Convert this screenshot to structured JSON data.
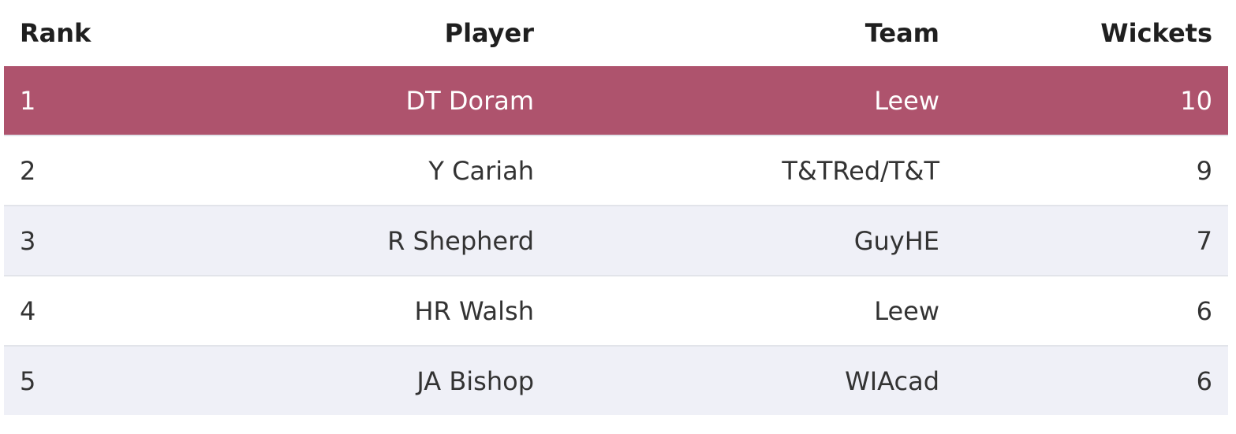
{
  "table": {
    "headers": {
      "rank": "Rank",
      "player": "Player",
      "team": "Team",
      "wickets": "Wickets"
    },
    "rows": [
      {
        "rank": "1",
        "player": "DT Doram",
        "team": "Leew",
        "wickets": "10"
      },
      {
        "rank": "2",
        "player": "Y Cariah",
        "team": "T&TRed/T&T",
        "wickets": "9"
      },
      {
        "rank": "3",
        "player": "R Shepherd",
        "team": "GuyHE",
        "wickets": "7"
      },
      {
        "rank": "4",
        "player": "HR Walsh",
        "team": "Leew",
        "wickets": "6"
      },
      {
        "rank": "5",
        "player": "JA Bishop",
        "team": "WIAcad",
        "wickets": "6"
      }
    ]
  },
  "colors": {
    "highlight_row": "#ae536d",
    "alt_row": "#eff0f7",
    "header_text": "#1f1f1f",
    "body_text": "#333333"
  }
}
